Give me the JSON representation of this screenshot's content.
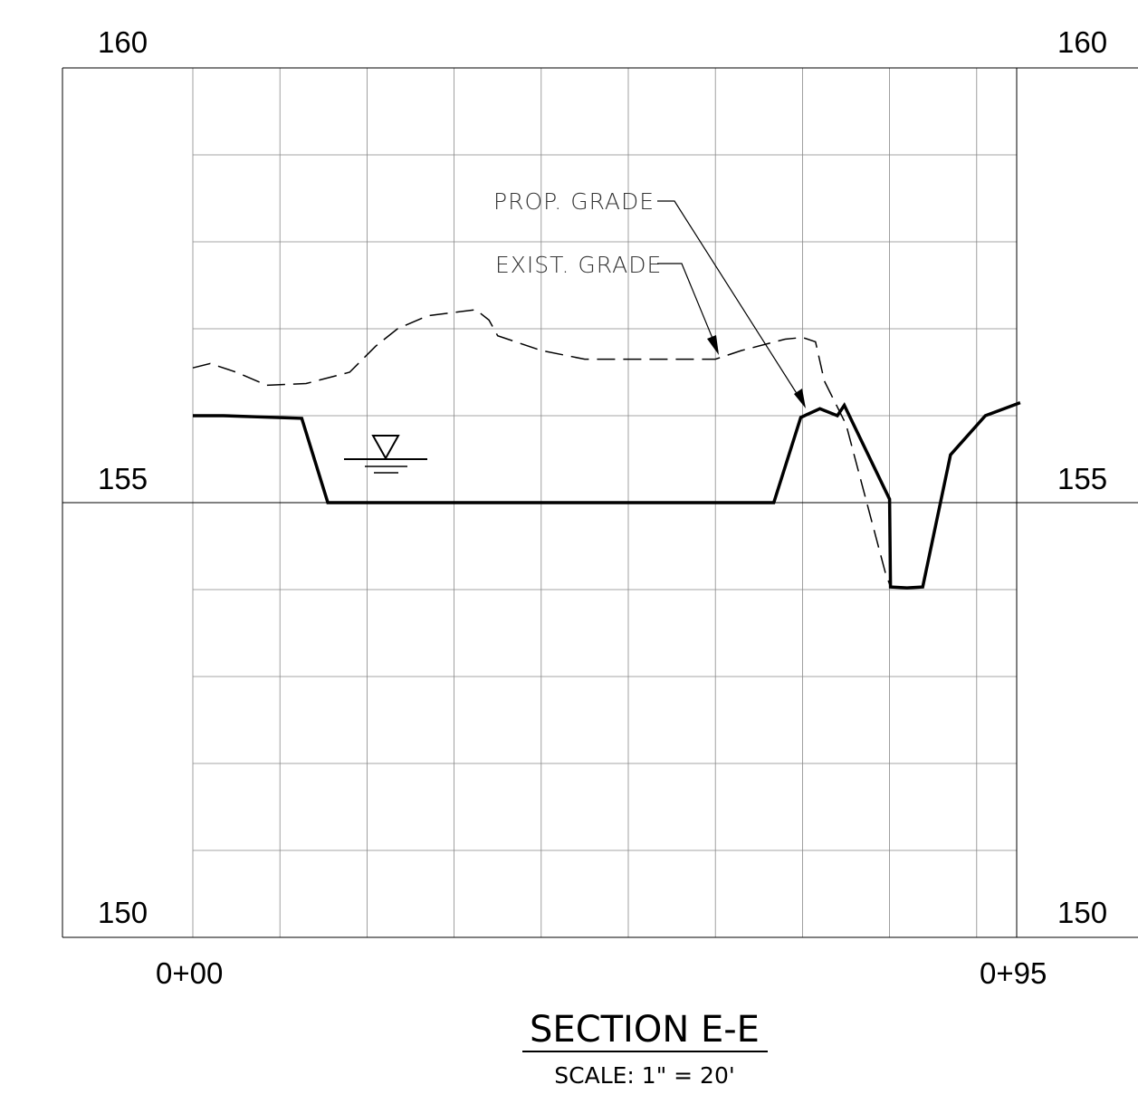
{
  "title": "SECTION E-E",
  "scale": "SCALE: 1\" = 20'",
  "axes": {
    "elevation_labels": {
      "top_left": "160",
      "top_right": "160",
      "mid_left": "155",
      "mid_right": "155",
      "bottom_left": "150",
      "bottom_right": "150"
    },
    "station_labels": {
      "start": "0+00",
      "end": "0+95"
    },
    "elevation_range": [
      150,
      160
    ],
    "station_range_ft": [
      0,
      95
    ],
    "grid_interval_ft": 10,
    "grid_interval_elev": 1
  },
  "callouts": {
    "proposed": "PROP. GRADE",
    "existing": "EXIST. GRADE"
  },
  "colors": {
    "line": "#000000",
    "grid": "#888888",
    "callout_text": "#333333"
  },
  "profiles": {
    "proposed_grade": [
      [
        0,
        156.0
      ],
      [
        3.5,
        156.0
      ],
      [
        12.5,
        155.97
      ],
      [
        15.5,
        155.0
      ],
      [
        66.7,
        155.0
      ],
      [
        69.8,
        155.98
      ],
      [
        72.0,
        156.08
      ],
      [
        74.0,
        156.0
      ],
      [
        74.8,
        156.12
      ],
      [
        80.0,
        155.04
      ],
      [
        80.1,
        154.03
      ],
      [
        82.0,
        154.02
      ],
      [
        83.8,
        154.03
      ],
      [
        87.0,
        155.55
      ],
      [
        91.0,
        156.0
      ],
      [
        95.0,
        156.15
      ]
    ],
    "existing_grade": [
      [
        0,
        156.55
      ],
      [
        2.0,
        156.6
      ],
      [
        5.0,
        156.5
      ],
      [
        8.5,
        156.35
      ],
      [
        13.0,
        156.37
      ],
      [
        18.0,
        156.5
      ],
      [
        21.0,
        156.8
      ],
      [
        23.5,
        157.0
      ],
      [
        27.0,
        157.15
      ],
      [
        32.5,
        157.22
      ],
      [
        34.0,
        157.1
      ],
      [
        35.0,
        156.92
      ],
      [
        40.0,
        156.75
      ],
      [
        45.0,
        156.65
      ],
      [
        60.0,
        156.65
      ],
      [
        63.0,
        156.75
      ],
      [
        68.0,
        156.88
      ],
      [
        70.0,
        156.9
      ],
      [
        71.5,
        156.85
      ],
      [
        72.5,
        156.4
      ],
      [
        75.0,
        155.9
      ],
      [
        79.5,
        154.2
      ],
      [
        80.0,
        154.06
      ]
    ],
    "water_surface_station_ft": 22.5,
    "water_surface_elev": 155.6
  }
}
